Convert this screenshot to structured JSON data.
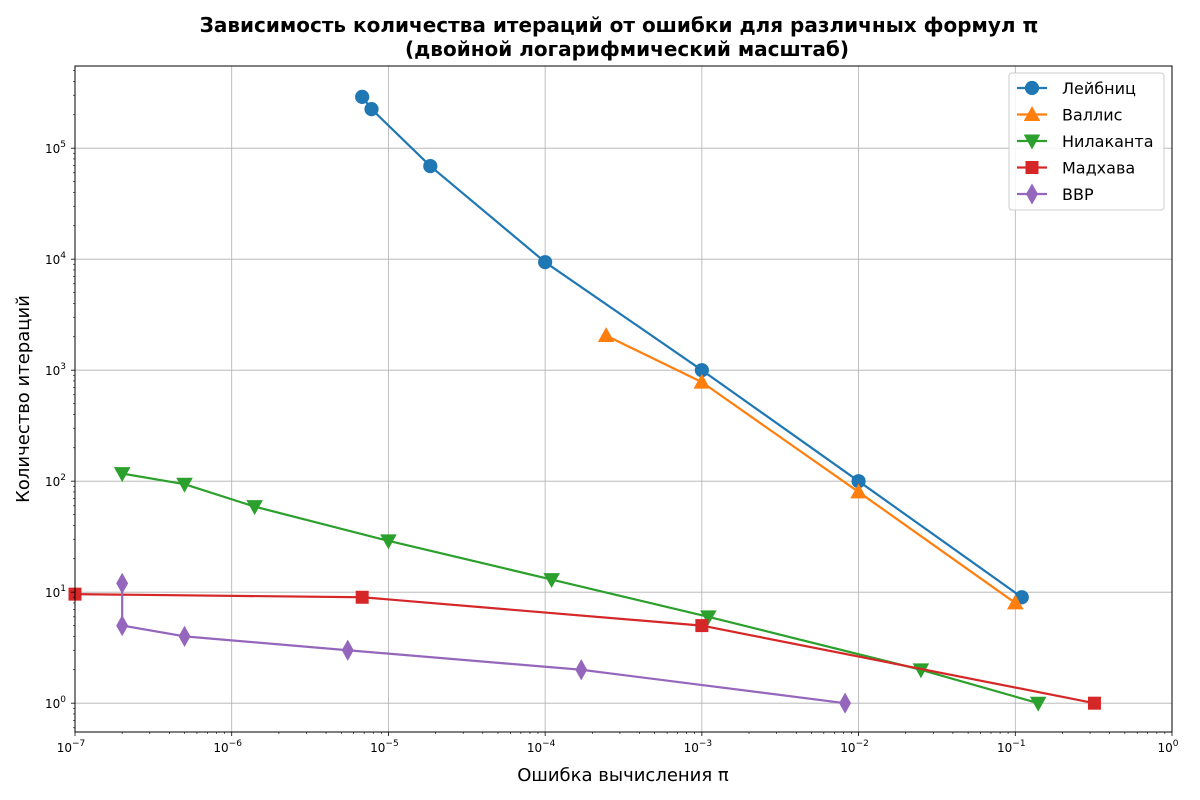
{
  "chart_data": {
    "type": "line",
    "title": "Зависимость количества итераций от ошибки для различных формул π",
    "subtitle": "(двойной логарифмический масштаб)",
    "xlabel": "Ошибка вычисления π",
    "ylabel": "Количество итераций",
    "x_scale": "log",
    "y_scale": "log",
    "xlim": [
      1e-07,
      1
    ],
    "ylim": [
      0.55,
      550000
    ],
    "x_ticks": [
      {
        "value": 1e-07,
        "base": "10",
        "exp": "−7"
      },
      {
        "value": 1e-06,
        "base": "10",
        "exp": "−6"
      },
      {
        "value": 1e-05,
        "base": "10",
        "exp": "−5"
      },
      {
        "value": 0.0001,
        "base": "10",
        "exp": "−4"
      },
      {
        "value": 0.001,
        "base": "10",
        "exp": "−3"
      },
      {
        "value": 0.01,
        "base": "10",
        "exp": "−2"
      },
      {
        "value": 0.1,
        "base": "10",
        "exp": "−1"
      },
      {
        "value": 1,
        "base": "10",
        "exp": "0"
      }
    ],
    "y_ticks": [
      {
        "value": 1,
        "base": "10",
        "exp": "0"
      },
      {
        "value": 10,
        "base": "10",
        "exp": "1"
      },
      {
        "value": 100,
        "base": "10",
        "exp": "2"
      },
      {
        "value": 1000,
        "base": "10",
        "exp": "3"
      },
      {
        "value": 10000,
        "base": "10",
        "exp": "4"
      },
      {
        "value": 100000,
        "base": "10",
        "exp": "5"
      }
    ],
    "grid": true,
    "legend_position": "top-right",
    "series": [
      {
        "name": "Лейбниц",
        "color": "#1f77b4",
        "marker": "circle",
        "points": [
          [
            6.8e-06,
            290000
          ],
          [
            7.8e-06,
            225000
          ],
          [
            1.85e-05,
            69000
          ],
          [
            0.0001,
            9400
          ],
          [
            0.001,
            1000
          ],
          [
            0.01,
            100
          ],
          [
            0.11,
            9
          ]
        ]
      },
      {
        "name": "Валлис",
        "color": "#ff7f0e",
        "marker": "triangle-up",
        "points": [
          [
            0.000245,
            2050
          ],
          [
            0.001,
            780
          ],
          [
            0.01,
            80
          ],
          [
            0.1,
            8
          ]
        ]
      },
      {
        "name": "Нилаканта",
        "color": "#2ca02c",
        "marker": "triangle-down",
        "points": [
          [
            2e-07,
            117
          ],
          [
            5e-07,
            94
          ],
          [
            1.4e-06,
            59
          ],
          [
            1e-05,
            29
          ],
          [
            0.00011,
            13
          ],
          [
            0.0011,
            6
          ],
          [
            0.025,
            2
          ],
          [
            0.14,
            1
          ]
        ]
      },
      {
        "name": "Мадхава",
        "color": "#d62728",
        "marker": "square",
        "points": [
          [
            1e-07,
            9.6
          ],
          [
            6.8e-06,
            9
          ],
          [
            0.001,
            5
          ],
          [
            0.32,
            1
          ]
        ]
      },
      {
        "name": "BBP",
        "color": "#9467bd",
        "marker": "diamond",
        "points": [
          [
            2e-07,
            12
          ],
          [
            2e-07,
            5
          ],
          [
            5e-07,
            4
          ],
          [
            5.5e-06,
            3
          ],
          [
            0.00017,
            2
          ],
          [
            0.0082,
            1
          ]
        ]
      }
    ]
  }
}
